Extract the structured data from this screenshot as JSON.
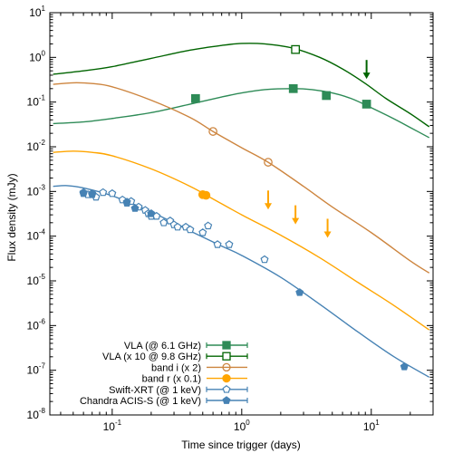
{
  "chart_data": {
    "type": "scatter",
    "xlabel": "Time since trigger (days)",
    "ylabel": "Flux density (mJy)",
    "xscale": "log",
    "yscale": "log",
    "xlim": [
      0.033,
      30
    ],
    "ylim": [
      1e-08,
      10
    ],
    "x_ticks": [
      {
        "base": "10",
        "exp": "-1",
        "value": 0.1
      },
      {
        "base": "10",
        "exp": "0",
        "value": 1
      },
      {
        "base": "10",
        "exp": "1",
        "value": 10
      }
    ],
    "y_ticks": [
      {
        "base": "10",
        "exp": "1",
        "value": 10
      },
      {
        "base": "10",
        "exp": "0",
        "value": 1
      },
      {
        "base": "10",
        "exp": "-1",
        "value": 0.1
      },
      {
        "base": "10",
        "exp": "-2",
        "value": 0.01
      },
      {
        "base": "10",
        "exp": "-3",
        "value": 0.001
      },
      {
        "base": "10",
        "exp": "-4",
        "value": 0.0001
      },
      {
        "base": "10",
        "exp": "-5",
        "value": 1e-05
      },
      {
        "base": "10",
        "exp": "-6",
        "value": 1e-06
      },
      {
        "base": "10",
        "exp": "-7",
        "value": 1e-07
      },
      {
        "base": "10",
        "exp": "-8",
        "value": 1e-08
      }
    ],
    "legend_position": "bottom-left",
    "series": [
      {
        "name": "VLA (@ 6.1 GHz)",
        "color": "#2e8b57",
        "marker": "filled-square",
        "points": [
          [
            0.44,
            0.12
          ],
          [
            2.5,
            0.2
          ],
          [
            4.5,
            0.14
          ],
          [
            9.2,
            0.09
          ]
        ],
        "upper_limits": [],
        "model": [
          [
            0.035,
            0.033
          ],
          [
            0.06,
            0.036
          ],
          [
            0.1,
            0.043
          ],
          [
            0.2,
            0.058
          ],
          [
            0.4,
            0.09
          ],
          [
            0.7,
            0.13
          ],
          [
            1.0,
            0.16
          ],
          [
            1.5,
            0.19
          ],
          [
            2.5,
            0.2
          ],
          [
            3.5,
            0.19
          ],
          [
            5.0,
            0.16
          ],
          [
            7.0,
            0.12
          ],
          [
            10.0,
            0.075
          ],
          [
            15.0,
            0.042
          ],
          [
            20.0,
            0.027
          ],
          [
            28.0,
            0.016
          ]
        ]
      },
      {
        "name": "VLA (x 10 @ 9.8 GHz)",
        "color": "#006400",
        "marker": "open-square",
        "points": [
          [
            2.6,
            1.5
          ]
        ],
        "upper_limits": [
          [
            9.2,
            0.5
          ]
        ],
        "model": [
          [
            0.035,
            0.42
          ],
          [
            0.06,
            0.5
          ],
          [
            0.1,
            0.62
          ],
          [
            0.2,
            0.95
          ],
          [
            0.4,
            1.45
          ],
          [
            0.7,
            1.85
          ],
          [
            1.0,
            2.05
          ],
          [
            1.5,
            2.0
          ],
          [
            2.5,
            1.6
          ],
          [
            4.0,
            1.0
          ],
          [
            6.0,
            0.55
          ],
          [
            9.0,
            0.26
          ],
          [
            13.0,
            0.12
          ],
          [
            20.0,
            0.055
          ],
          [
            28.0,
            0.028
          ]
        ]
      },
      {
        "name": "band i (x 2)",
        "color": "#cd853f",
        "marker": "open-circle",
        "points": [
          [
            0.6,
            0.022
          ],
          [
            1.6,
            0.0045
          ]
        ],
        "upper_limits": [],
        "model": [
          [
            0.035,
            0.25
          ],
          [
            0.05,
            0.27
          ],
          [
            0.07,
            0.26
          ],
          [
            0.1,
            0.22
          ],
          [
            0.2,
            0.11
          ],
          [
            0.4,
            0.045
          ],
          [
            0.6,
            0.022
          ],
          [
            1.0,
            0.0095
          ],
          [
            1.6,
            0.0045
          ],
          [
            3.0,
            0.0013
          ],
          [
            5.0,
            0.00045
          ],
          [
            10.0,
            0.00012
          ],
          [
            20.0,
            2.8e-05
          ],
          [
            28.0,
            1.5e-05
          ]
        ]
      },
      {
        "name": "band r (x 0.1)",
        "color": "#ffa500",
        "marker": "filled-circle",
        "points": [
          [
            0.5,
            0.00085
          ],
          [
            0.53,
            0.00082
          ]
        ],
        "upper_limits": [
          [
            1.6,
            0.0006
          ],
          [
            2.6,
            0.00028
          ],
          [
            4.6,
            0.00014
          ]
        ],
        "model": [
          [
            0.035,
            0.0075
          ],
          [
            0.05,
            0.008
          ],
          [
            0.07,
            0.0075
          ],
          [
            0.1,
            0.0063
          ],
          [
            0.2,
            0.0032
          ],
          [
            0.4,
            0.0013
          ],
          [
            0.6,
            0.00068
          ],
          [
            1.0,
            0.0003
          ],
          [
            2.0,
            0.000105
          ],
          [
            4.0,
            3.3e-05
          ],
          [
            8.0,
            9e-06
          ],
          [
            15.0,
            2.8e-06
          ],
          [
            28.0,
            8e-07
          ]
        ]
      },
      {
        "name": "Swift-XRT (@ 1 keV)",
        "color": "#4682b4",
        "marker": "open-pentagon",
        "points": [
          [
            0.06,
            0.00095
          ],
          [
            0.065,
            0.00085
          ],
          [
            0.07,
            0.0009
          ],
          [
            0.075,
            0.00075
          ],
          [
            0.085,
            0.00095
          ],
          [
            0.1,
            0.0009
          ],
          [
            0.12,
            0.00065
          ],
          [
            0.13,
            0.00055
          ],
          [
            0.14,
            0.0006
          ],
          [
            0.16,
            0.00045
          ],
          [
            0.18,
            0.00038
          ],
          [
            0.19,
            0.00032
          ],
          [
            0.2,
            0.00028
          ],
          [
            0.22,
            0.00028
          ],
          [
            0.25,
            0.0002
          ],
          [
            0.28,
            0.00022
          ],
          [
            0.3,
            0.00018
          ],
          [
            0.32,
            0.00016
          ],
          [
            0.37,
            0.00016
          ],
          [
            0.4,
            0.00014
          ],
          [
            0.5,
            0.00012
          ],
          [
            0.55,
            0.00017
          ],
          [
            0.65,
            6.5e-05
          ],
          [
            0.8,
            6.5e-05
          ],
          [
            1.5,
            3e-05
          ]
        ],
        "upper_limits": [],
        "model": [
          [
            0.035,
            0.0013
          ],
          [
            0.045,
            0.00135
          ],
          [
            0.06,
            0.0012
          ],
          [
            0.1,
            0.0008
          ],
          [
            0.2,
            0.00035
          ],
          [
            0.4,
            0.00013
          ],
          [
            0.7,
            6e-05
          ],
          [
            1.0,
            3.7e-05
          ],
          [
            2.0,
            1.2e-05
          ],
          [
            4.0,
            3e-06
          ],
          [
            8.0,
            7e-07
          ],
          [
            15.0,
            2e-07
          ],
          [
            28.0,
            7e-08
          ]
        ]
      },
      {
        "name": "Chandra ACIS-S (@ 1 keV)",
        "color": "#4682b4",
        "marker": "filled-pentagon",
        "points": [
          [
            0.06,
            0.0009
          ],
          [
            0.07,
            0.00085
          ],
          [
            0.13,
            0.00058
          ],
          [
            0.15,
            0.00042
          ],
          [
            0.2,
            0.00032
          ],
          [
            2.8,
            5.5e-06
          ],
          [
            18.0,
            1.2e-07
          ]
        ],
        "upper_limits": [],
        "model": []
      }
    ]
  }
}
